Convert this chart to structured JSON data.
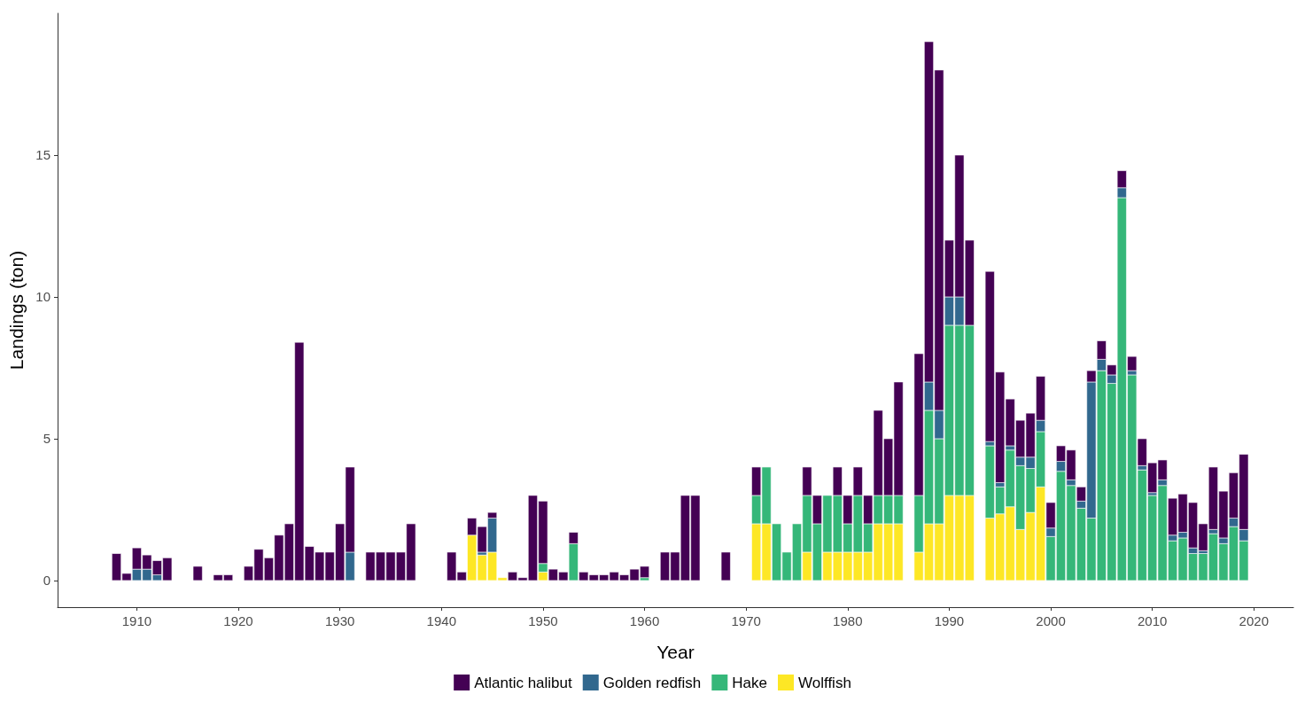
{
  "chart_data": {
    "type": "bar",
    "stacked": true,
    "xlabel": "Year",
    "ylabel": "Landings (ton)",
    "x": [
      1908,
      1909,
      1910,
      1911,
      1912,
      1913,
      1916,
      1918,
      1919,
      1921,
      1922,
      1923,
      1924,
      1925,
      1926,
      1927,
      1928,
      1929,
      1930,
      1931,
      1933,
      1934,
      1935,
      1936,
      1937,
      1941,
      1942,
      1943,
      1944,
      1945,
      1946,
      1947,
      1948,
      1949,
      1950,
      1951,
      1952,
      1953,
      1954,
      1955,
      1956,
      1957,
      1958,
      1959,
      1960,
      1962,
      1963,
      1964,
      1965,
      1968,
      1971,
      1972,
      1973,
      1974,
      1975,
      1976,
      1977,
      1978,
      1979,
      1980,
      1981,
      1982,
      1983,
      1984,
      1985,
      1987,
      1988,
      1989,
      1990,
      1991,
      1992,
      1994,
      1995,
      1996,
      1997,
      1998,
      1999,
      2000,
      2001,
      2002,
      2003,
      2004,
      2005,
      2006,
      2007,
      2008,
      2009,
      2010,
      2011,
      2012,
      2013,
      2014,
      2015,
      2016,
      2017,
      2018,
      2019
    ],
    "series": [
      {
        "name": "Wolffish",
        "color": "#fde725",
        "values": [
          null,
          null,
          null,
          null,
          null,
          null,
          null,
          null,
          null,
          null,
          null,
          null,
          null,
          null,
          null,
          null,
          null,
          null,
          null,
          null,
          null,
          null,
          null,
          null,
          null,
          null,
          null,
          1.6,
          0.9,
          1.0,
          0.1,
          null,
          null,
          null,
          0.3,
          null,
          null,
          null,
          null,
          null,
          null,
          null,
          null,
          null,
          null,
          null,
          null,
          null,
          null,
          null,
          2,
          2,
          null,
          null,
          null,
          1,
          null,
          1,
          1,
          1,
          1,
          1,
          2,
          2,
          2,
          1,
          2,
          2,
          3,
          3,
          3,
          2.2,
          2.35,
          2.6,
          1.8,
          2.4,
          3.3,
          null,
          null,
          null,
          null,
          null,
          null,
          null,
          null,
          null,
          null,
          null,
          null,
          null,
          null,
          null,
          null,
          null,
          null,
          null,
          null
        ]
      },
      {
        "name": "Hake",
        "color": "#35b779",
        "values": [
          null,
          null,
          null,
          null,
          null,
          null,
          null,
          null,
          null,
          null,
          null,
          null,
          null,
          null,
          null,
          null,
          null,
          null,
          null,
          null,
          null,
          null,
          null,
          null,
          null,
          null,
          null,
          null,
          null,
          null,
          null,
          null,
          null,
          null,
          0.3,
          null,
          null,
          1.3,
          null,
          null,
          null,
          null,
          null,
          null,
          0.1,
          null,
          null,
          null,
          null,
          null,
          1,
          2,
          2,
          1,
          2,
          2,
          2,
          2,
          2,
          1,
          2,
          1,
          1,
          1,
          1,
          2,
          4,
          3,
          6,
          6,
          6,
          2.55,
          0.95,
          2,
          2.25,
          1.55,
          1.95,
          1.55,
          3.85,
          3.35,
          2.55,
          2.2,
          7.4,
          6.95,
          13.5,
          7.25,
          3.9,
          3,
          3.35,
          1.4,
          1.5,
          0.95,
          0.95,
          1.65,
          1.3,
          1.9,
          1.4
        ]
      },
      {
        "name": "Golden redfish",
        "color": "#31688e",
        "values": [
          null,
          null,
          0.4,
          0.4,
          0.2,
          null,
          null,
          null,
          null,
          null,
          null,
          null,
          null,
          null,
          null,
          null,
          null,
          null,
          null,
          1,
          null,
          null,
          null,
          null,
          null,
          null,
          null,
          null,
          0.1,
          1.2,
          null,
          null,
          null,
          null,
          null,
          null,
          null,
          null,
          null,
          null,
          null,
          null,
          null,
          null,
          null,
          null,
          null,
          null,
          null,
          null,
          null,
          null,
          null,
          null,
          null,
          null,
          null,
          null,
          null,
          null,
          null,
          null,
          null,
          null,
          null,
          null,
          1,
          1,
          1,
          1,
          null,
          0.15,
          0.15,
          0.15,
          0.3,
          0.4,
          0.4,
          0.3,
          0.35,
          0.2,
          0.25,
          4.8,
          0.4,
          0.3,
          0.35,
          0.15,
          0.15,
          0.1,
          0.2,
          0.2,
          0.2,
          0.2,
          0.1,
          0.15,
          0.2,
          0.3,
          0.4
        ]
      },
      {
        "name": "Atlantic halibut",
        "color": "#440154",
        "values": [
          0.95,
          0.25,
          0.75,
          0.5,
          0.5,
          0.8,
          0.5,
          0.2,
          0.2,
          0.5,
          1.1,
          0.8,
          1.6,
          2,
          8.4,
          1.2,
          1,
          1,
          2,
          3,
          1,
          1,
          1,
          1,
          2,
          1,
          0.3,
          0.6,
          0.9,
          0.2,
          null,
          0.3,
          0.1,
          3,
          2.2,
          0.4,
          0.3,
          0.4,
          0.3,
          0.2,
          0.2,
          0.3,
          0.2,
          0.4,
          0.4,
          1,
          1,
          3,
          3,
          1,
          1,
          null,
          null,
          null,
          null,
          1,
          1,
          null,
          1,
          1,
          1,
          1,
          3,
          2,
          4,
          5,
          12,
          12,
          2,
          5,
          3,
          6,
          3.9,
          1.65,
          1.3,
          1.55,
          1.55,
          0.9,
          0.55,
          1.05,
          0.5,
          0.4,
          0.65,
          0.35,
          0.6,
          0.5,
          0.95,
          1.05,
          0.7,
          1.3,
          1.35,
          1.6,
          0.95,
          2.2,
          1.65,
          1.6,
          2.65
        ]
      }
    ],
    "xlim": [
      1902.2,
      2023.9
    ],
    "xticks": [
      1910,
      1920,
      1930,
      1940,
      1950,
      1960,
      1970,
      1980,
      1990,
      2000,
      2010,
      2020
    ],
    "ylim": [
      -0.94,
      20
    ],
    "yticks": [
      0,
      5,
      10,
      15
    ],
    "grid": false,
    "legend": "bottom"
  }
}
